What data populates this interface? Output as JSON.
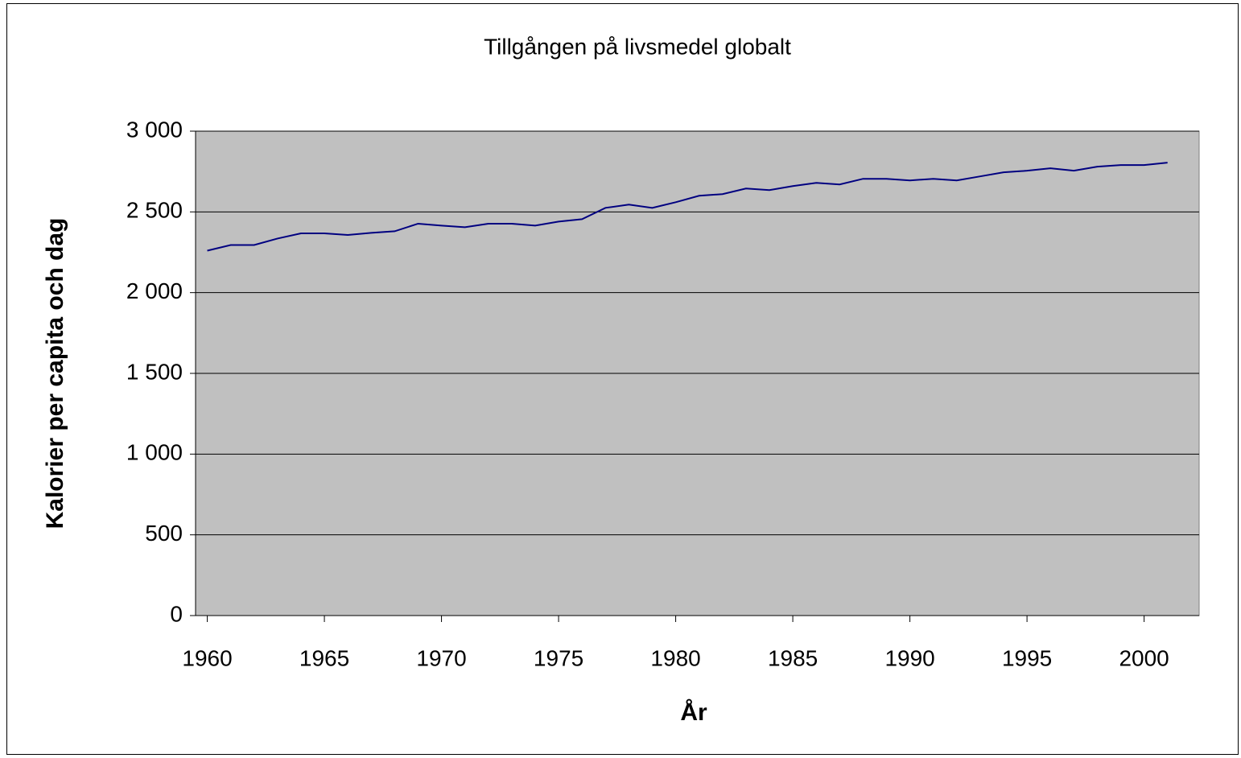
{
  "chart_data": {
    "type": "line",
    "title": "Tillgången på livsmedel globalt",
    "x_label": "År",
    "y_label": "Kalorier per capita och dag",
    "x": [
      1960,
      1961,
      1962,
      1963,
      1964,
      1965,
      1966,
      1967,
      1968,
      1969,
      1970,
      1971,
      1972,
      1973,
      1974,
      1975,
      1976,
      1977,
      1978,
      1979,
      1980,
      1981,
      1982,
      1983,
      1984,
      1985,
      1986,
      1987,
      1988,
      1989,
      1990,
      1991,
      1992,
      1993,
      1994,
      1995,
      1996,
      1997,
      1998,
      1999,
      2000,
      2001
    ],
    "series": [
      {
        "name": "Kalorier",
        "color": "#000080",
        "values": [
          2260,
          2295,
          2295,
          2335,
          2367,
          2367,
          2357,
          2370,
          2380,
          2427,
          2415,
          2405,
          2427,
          2427,
          2415,
          2440,
          2455,
          2525,
          2545,
          2525,
          2560,
          2600,
          2610,
          2645,
          2635,
          2660,
          2680,
          2670,
          2705,
          2705,
          2695,
          2705,
          2695,
          2720,
          2745,
          2755,
          2770,
          2755,
          2780,
          2790,
          2790,
          2805
        ]
      }
    ],
    "xlim": [
      1959.5,
      2002.35
    ],
    "xticks": [
      1960,
      1965,
      1970,
      1975,
      1980,
      1985,
      1990,
      1995,
      2000
    ],
    "ylim": [
      0,
      3000
    ],
    "yticks": [
      0,
      500,
      {
        "value": 1000,
        "label": "1 000"
      },
      {
        "value": 1500,
        "label": "1 500"
      },
      {
        "value": 2000,
        "label": "2 000"
      },
      {
        "value": 2500,
        "label": "2 500"
      },
      {
        "value": 3000,
        "label": "3 000"
      }
    ],
    "grid": true,
    "plot_background": "#c0c0c0"
  }
}
